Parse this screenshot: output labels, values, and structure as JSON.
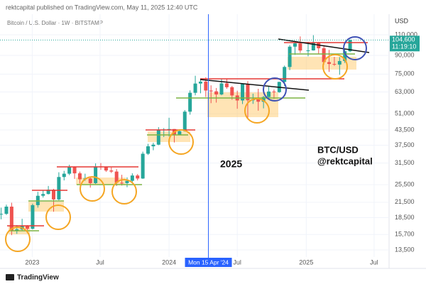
{
  "header": "rektcapital published on TradingView.com, May 11, 2025 12:40 UTC",
  "footer": "TradingView",
  "chart_data": {
    "type": "candlestick",
    "title": "Bitcoin / U.S. Dollar · 1W · BITSTAMP",
    "currency": "USD",
    "annotations": [
      "2025",
      "BTC/USD",
      "@rektcapital"
    ],
    "log_scale": true,
    "grid": true,
    "up_color": "#26a69a",
    "down_color": "#ef5350",
    "xlim": [
      "2022-10-07",
      "2025-08-10"
    ],
    "xticks": [
      {
        "value": "2023-01-01",
        "label": "2023"
      },
      {
        "value": "2023-07-01",
        "label": "Jul"
      },
      {
        "value": "2024-01-01",
        "label": "2024"
      },
      {
        "value": "2024-07-01",
        "label": "Jul"
      },
      {
        "value": "2025-01-01",
        "label": "2025"
      },
      {
        "value": "2025-07-01",
        "label": "Jul"
      }
    ],
    "ylim": [
      12600,
      134500
    ],
    "yticks": [
      {
        "value": 13500,
        "label": "13,500"
      },
      {
        "value": 15700,
        "label": "15,700"
      },
      {
        "value": 18500,
        "label": "18,500"
      },
      {
        "value": 21500,
        "label": "21,500"
      },
      {
        "value": 25500,
        "label": "25,500"
      },
      {
        "value": 31500,
        "label": "31,500"
      },
      {
        "value": 37500,
        "label": "37,500"
      },
      {
        "value": 43500,
        "label": "43,500"
      },
      {
        "value": 51000,
        "label": "51,000"
      },
      {
        "value": 63000,
        "label": "63,000"
      },
      {
        "value": 75000,
        "label": "75,000"
      },
      {
        "value": 90000,
        "label": "90,000"
      },
      {
        "value": 110000,
        "label": "110,000"
      }
    ],
    "last_price": {
      "value": 104600,
      "label": "104,600",
      "countdown": "11:19:10"
    },
    "crosshair": {
      "x": "2024-04-15",
      "label": "Mon 15 Apr '24"
    },
    "x": [
      "2022-10-10",
      "2022-10-24",
      "2022-11-07",
      "2022-11-21",
      "2022-12-05",
      "2022-12-19",
      "2023-01-02",
      "2023-01-16",
      "2023-01-30",
      "2023-02-13",
      "2023-02-27",
      "2023-03-13",
      "2023-03-27",
      "2023-04-10",
      "2023-04-24",
      "2023-05-08",
      "2023-05-22",
      "2023-06-05",
      "2023-06-19",
      "2023-07-03",
      "2023-07-17",
      "2023-07-31",
      "2023-08-14",
      "2023-08-28",
      "2023-09-11",
      "2023-09-25",
      "2023-10-09",
      "2023-10-23",
      "2023-11-06",
      "2023-11-20",
      "2023-12-04",
      "2023-12-18",
      "2024-01-01",
      "2024-01-15",
      "2024-01-29",
      "2024-02-12",
      "2024-02-26",
      "2024-03-11",
      "2024-03-25",
      "2024-04-08",
      "2024-04-22",
      "2024-05-06",
      "2024-05-20",
      "2024-06-03",
      "2024-06-17",
      "2024-07-01",
      "2024-07-15",
      "2024-07-29",
      "2024-08-12",
      "2024-08-26",
      "2024-09-09",
      "2024-09-23",
      "2024-10-07",
      "2024-10-21",
      "2024-11-04",
      "2024-11-18",
      "2024-12-02",
      "2024-12-16",
      "2025-01-06",
      "2025-01-20",
      "2025-02-03",
      "2025-02-17",
      "2025-03-03",
      "2025-03-17",
      "2025-03-31",
      "2025-04-14",
      "2025-04-28"
    ],
    "ohlc": [
      [
        19100,
        20400,
        18200,
        19200
      ],
      [
        19200,
        21000,
        19000,
        20600
      ],
      [
        20600,
        21400,
        15600,
        16300
      ],
      [
        16300,
        17200,
        15800,
        16500
      ],
      [
        16500,
        18300,
        16300,
        17100
      ],
      [
        17100,
        17200,
        16400,
        16600
      ],
      [
        16600,
        21200,
        16500,
        20900
      ],
      [
        20900,
        23800,
        20400,
        22900
      ],
      [
        22900,
        24200,
        22500,
        23300
      ],
      [
        23300,
        25200,
        23200,
        24300
      ],
      [
        24300,
        24500,
        19600,
        22100
      ],
      [
        22100,
        28800,
        21900,
        27500
      ],
      [
        27500,
        29200,
        26600,
        28400
      ],
      [
        28400,
        31000,
        28000,
        30300
      ],
      [
        30300,
        30500,
        27000,
        28500
      ],
      [
        28500,
        29000,
        25800,
        26900
      ],
      [
        26900,
        28400,
        26500,
        27100
      ],
      [
        27100,
        27400,
        24800,
        25900
      ],
      [
        25900,
        31400,
        25700,
        30500
      ],
      [
        30500,
        31500,
        29500,
        30300
      ],
      [
        30300,
        30400,
        28900,
        29300
      ],
      [
        29300,
        30200,
        28600,
        29000
      ],
      [
        29000,
        29700,
        25200,
        26000
      ],
      [
        26000,
        28100,
        25300,
        25900
      ],
      [
        25900,
        27400,
        24900,
        26500
      ],
      [
        26500,
        28500,
        26000,
        27900
      ],
      [
        27900,
        28300,
        26600,
        27100
      ],
      [
        27100,
        35200,
        27000,
        34500
      ],
      [
        34500,
        38000,
        34100,
        37100
      ],
      [
        37100,
        38400,
        35700,
        37700
      ],
      [
        37700,
        44700,
        37500,
        43700
      ],
      [
        43700,
        44300,
        40600,
        43700
      ],
      [
        43700,
        49000,
        40800,
        43900
      ],
      [
        43900,
        43900,
        38500,
        41600
      ],
      [
        41600,
        43800,
        41400,
        43000
      ],
      [
        43000,
        52800,
        42800,
        52000
      ],
      [
        52000,
        64000,
        50500,
        62500
      ],
      [
        62500,
        73800,
        61000,
        68400
      ],
      [
        68400,
        71800,
        62200,
        69700
      ],
      [
        69700,
        72700,
        60000,
        63900
      ],
      [
        63900,
        67200,
        56500,
        63400
      ],
      [
        63400,
        65500,
        56800,
        61500
      ],
      [
        61500,
        71900,
        61000,
        68500
      ],
      [
        68500,
        71900,
        65000,
        66000
      ],
      [
        66000,
        66800,
        58400,
        60900
      ],
      [
        60900,
        63800,
        53500,
        58000
      ],
      [
        58000,
        68500,
        56000,
        68000
      ],
      [
        68000,
        70000,
        49000,
        58100
      ],
      [
        58100,
        62000,
        56100,
        58700
      ],
      [
        58700,
        65000,
        52500,
        57300
      ],
      [
        57300,
        60600,
        53700,
        60000
      ],
      [
        60000,
        66500,
        59500,
        63300
      ],
      [
        63300,
        64500,
        58900,
        62900
      ],
      [
        62900,
        69600,
        62500,
        69500
      ],
      [
        69500,
        81500,
        66800,
        80400
      ],
      [
        80400,
        99600,
        78000,
        98000
      ],
      [
        98000,
        103600,
        90500,
        101200
      ],
      [
        101200,
        108300,
        92200,
        94400
      ],
      [
        94400,
        102700,
        89200,
        94500
      ],
      [
        94500,
        109600,
        94300,
        102000
      ],
      [
        102000,
        102500,
        91200,
        96500
      ],
      [
        96500,
        99500,
        82300,
        84300
      ],
      [
        84300,
        95000,
        76600,
        82800
      ],
      [
        82800,
        88700,
        81300,
        82300
      ],
      [
        82300,
        88500,
        74500,
        85200
      ],
      [
        85200,
        95700,
        83600,
        93700
      ],
      [
        93700,
        105000,
        92900,
        104600
      ]
    ]
  }
}
